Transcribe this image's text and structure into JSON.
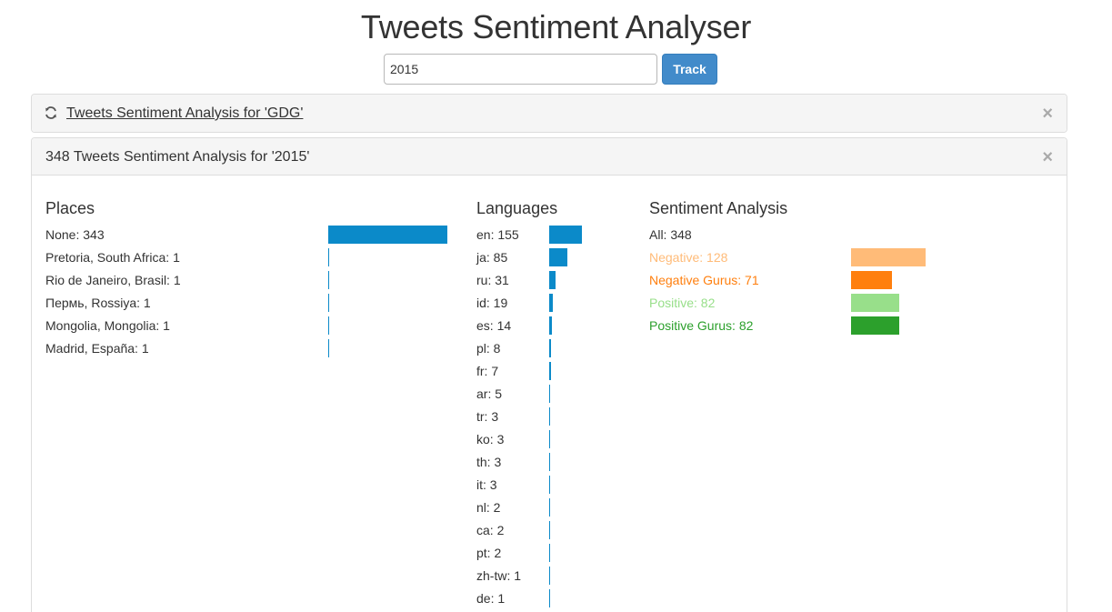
{
  "header": {
    "title": "Tweets Sentiment Analyser"
  },
  "search": {
    "value": "2015",
    "button_label": "Track"
  },
  "panels": [
    {
      "title": " Tweets Sentiment Analysis for 'GDG'",
      "close": "×"
    },
    {
      "title": "348 Tweets Sentiment Analysis for '2015'",
      "close": "×"
    }
  ],
  "places": {
    "heading": "Places",
    "color": "#0b8ac9",
    "max": 343,
    "items": [
      {
        "label": "None: 343",
        "value": 343
      },
      {
        "label": "Pretoria, South Africa: 1",
        "value": 1
      },
      {
        "label": "Rio de Janeiro, Brasil: 1",
        "value": 1
      },
      {
        "label": "Пермь, Rossiya: 1",
        "value": 1
      },
      {
        "label": "Mongolia, Mongolia: 1",
        "value": 1
      },
      {
        "label": "Madrid, España: 1",
        "value": 1
      }
    ]
  },
  "languages": {
    "heading": "Languages",
    "color": "#0b8ac9",
    "max": 155,
    "items": [
      {
        "label": "en: 155",
        "value": 155
      },
      {
        "label": "ja: 85",
        "value": 85
      },
      {
        "label": "ru: 31",
        "value": 31
      },
      {
        "label": "id: 19",
        "value": 19
      },
      {
        "label": "es: 14",
        "value": 14
      },
      {
        "label": "pl: 8",
        "value": 8
      },
      {
        "label": "fr: 7",
        "value": 7
      },
      {
        "label": "ar: 5",
        "value": 5
      },
      {
        "label": "tr: 3",
        "value": 3
      },
      {
        "label": "ko: 3",
        "value": 3
      },
      {
        "label": "th: 3",
        "value": 3
      },
      {
        "label": "it: 3",
        "value": 3
      },
      {
        "label": "nl: 2",
        "value": 2
      },
      {
        "label": "ca: 2",
        "value": 2
      },
      {
        "label": "pt: 2",
        "value": 2
      },
      {
        "label": "zh-tw: 1",
        "value": 1
      },
      {
        "label": "de: 1",
        "value": 1
      }
    ]
  },
  "sentiment": {
    "heading": "Sentiment Analysis",
    "all_label": "All: 348",
    "max": 348,
    "items": [
      {
        "label": "Negative: 128",
        "value": 128,
        "color": "#ffbb78"
      },
      {
        "label": "Negative Gurus: 71",
        "value": 71,
        "color": "#ff7f0e"
      },
      {
        "label": "Positive: 82",
        "value": 82,
        "color": "#98df8a"
      },
      {
        "label": "Positive Gurus: 82",
        "value": 82,
        "color": "#2ca02c"
      }
    ]
  }
}
